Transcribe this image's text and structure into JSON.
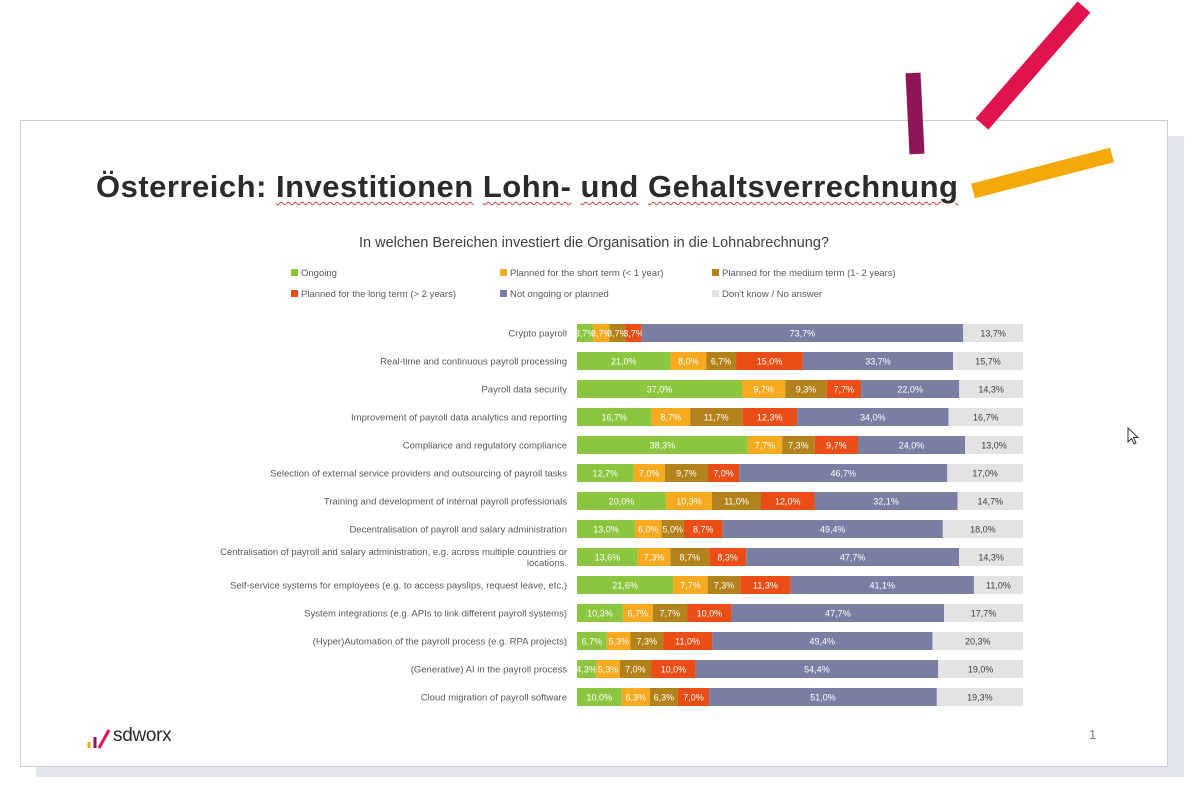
{
  "slide": {
    "title_prefix": "Österreich: ",
    "title_words": [
      "Investitionen",
      "Lohn-",
      "und",
      "Gehaltsverrechnung"
    ],
    "logo_text": "sdworx",
    "page_number": "1"
  },
  "colors": {
    "deco_red": "#e0134c",
    "deco_purple": "#8e1556",
    "deco_orange": "#f3a90a"
  },
  "chart_data": {
    "type": "bar",
    "orientation": "horizontal",
    "stacked": "percent",
    "title": "In welchen Bereichen investiert die Organisation in die Lohnabrechnung?",
    "legend_position": "top",
    "categories": [
      "Crypto payroll",
      "Real-time and continuous payroll processing",
      "Payroll data security",
      "Improvement of payroll data analytics and reporting",
      "Compliance and regulatory compliance",
      "Selection of external service providers and outsourcing of payroll tasks",
      "Training and development of internal payroll professionals",
      "Decentralisation of payroll and salary administration",
      "Centralisation of payroll and salary administration, e.g. across multiple countries or locations.",
      "Self-service systems for employees (e.g. to access payslips, request leave, etc.)",
      "System integrations (e.g. APIs to link different payroll systems)",
      "(Hyper)Automation of the payroll process (e.g. RPA projects)",
      "(Generative) AI in the payroll process",
      "Cloud migration of payroll software"
    ],
    "series": [
      {
        "name": "Ongoing",
        "color": "#8cc63f",
        "label_color": "#ffffff",
        "values": [
          3.7,
          21.0,
          37.0,
          16.7,
          38.3,
          12.7,
          20.0,
          13.0,
          13.6,
          21.6,
          10.3,
          6.7,
          4.3,
          10.0
        ]
      },
      {
        "name": "Planned for the short term (< 1 year)",
        "color": "#f7a91f",
        "label_color": "#ffffff",
        "values": [
          3.7,
          8.0,
          9.7,
          8.7,
          7.7,
          7.0,
          10.3,
          6.0,
          7.3,
          7.7,
          6.7,
          5.3,
          5.3,
          6.3
        ]
      },
      {
        "name": "Planned for the medium term (1- 2 years)",
        "color": "#b3821b",
        "label_color": "#ffffff",
        "values": [
          3.7,
          6.7,
          9.3,
          11.7,
          7.3,
          9.7,
          11.0,
          5.0,
          8.7,
          7.3,
          7.7,
          7.3,
          7.0,
          6.3
        ]
      },
      {
        "name": "Planned for the long term (> 2 years)",
        "color": "#ea4d15",
        "label_color": "#ffffff",
        "values": [
          3.7,
          15.0,
          7.7,
          12.3,
          9.7,
          7.0,
          12.0,
          8.7,
          8.3,
          11.3,
          10.0,
          11.0,
          10.0,
          7.0
        ]
      },
      {
        "name": "Not ongoing or planned",
        "color": "#7a7ea3",
        "label_color": "#ffffff",
        "values": [
          73.7,
          33.7,
          22.0,
          34.0,
          24.0,
          46.7,
          32.1,
          49.4,
          47.7,
          41.1,
          47.7,
          49.4,
          54.4,
          51.0
        ]
      },
      {
        "name": "Don't know / No answer",
        "color": "#e3e3e6",
        "label_color": "#404040",
        "values": [
          13.7,
          15.7,
          14.3,
          16.7,
          13.0,
          17.0,
          14.7,
          18.0,
          14.3,
          11.0,
          17.7,
          20.3,
          19.0,
          19.3
        ]
      }
    ],
    "value_labels": [
      [
        "3,7%",
        "21,0%",
        "37,0%",
        "16,7%",
        "38,3%",
        "12,7%",
        "20,0%",
        "13,0%",
        "13,6%",
        "21,6%",
        "10,3%",
        "6,7%",
        "4,3%",
        "10,0%"
      ],
      [
        "3,7%",
        "8,0%",
        "9,7%",
        "8,7%",
        "7,7%",
        "7,0%",
        "10,3%",
        "6,0%",
        "7,3%",
        "7,7%",
        "6,7%",
        "5,3%",
        "5,3%",
        "6,3%"
      ],
      [
        "3,7%",
        "6,7%",
        "9,3%",
        "11,7%",
        "7,3%",
        "9,7%",
        "11,0%",
        "5,0%",
        "8,7%",
        "7,3%",
        "7,7%",
        "7,3%",
        "7,0%",
        "6,3%"
      ],
      [
        "3,7%",
        "15,0%",
        "7,7%",
        "12,3%",
        "9,7%",
        "7,0%",
        "12,0%",
        "8,7%",
        "8,3%",
        "11,3%",
        "10,0%",
        "11,0%",
        "10,0%",
        "7,0%"
      ],
      [
        "73,7%",
        "33,7%",
        "22,0%",
        "34,0%",
        "24,0%",
        "46,7%",
        "32,1%",
        "49,4%",
        "47,7%",
        "41,1%",
        "47,7%",
        "49,4%",
        "54,4%",
        "51,0%"
      ],
      [
        "13,7%",
        "15,7%",
        "14,3%",
        "16,7%",
        "13,0%",
        "17,0%",
        "14,7%",
        "18,0%",
        "14,3%",
        "11,0%",
        "17,7%",
        "20,3%",
        "19,0%",
        "19,3%"
      ]
    ]
  }
}
